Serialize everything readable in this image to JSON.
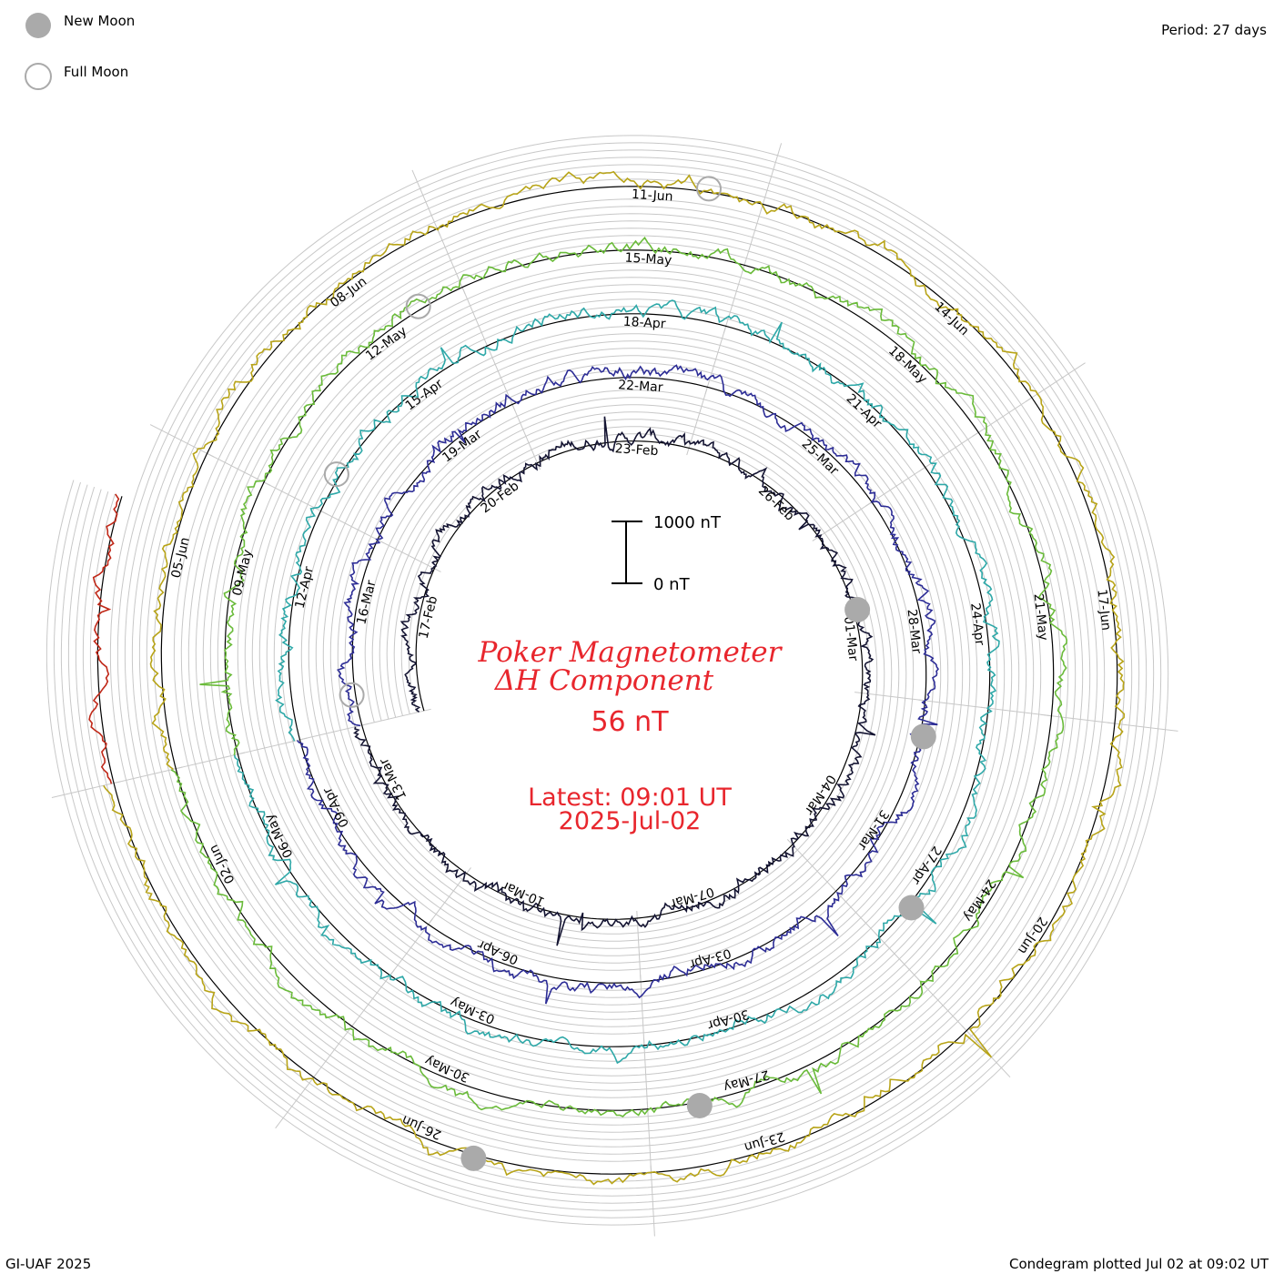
{
  "legend": {
    "new_moon": "New Moon",
    "full_moon": "Full Moon"
  },
  "period": "Period: 27 days",
  "footer": {
    "left": "GI-UAF 2025",
    "right": "Condegram plotted Jul 02 at 09:02 UT"
  },
  "title": {
    "line1": "Poker Magnetometer",
    "line2": "ΔH Component",
    "value": "56 nT",
    "latest_line1": "Latest: 09:01 UT",
    "latest_line2": "2025-Jul-02"
  },
  "scale": {
    "top_label": "1000 nT",
    "bottom_label": "0 nT"
  },
  "colors": {
    "title": "#e8262d",
    "moon_new": "#aaaaaa",
    "grid": "#c8c8c8"
  },
  "chart_data": {
    "type": "line",
    "subtype": "condegram-spiral",
    "period_days": 27,
    "start_date": "2025-02-15",
    "end_date": "2025-07-02",
    "cycles": [
      {
        "start": "2025-02-15",
        "color": "#141432",
        "labels": [
          "17-Feb",
          "20-Feb",
          "23-Feb",
          "26-Feb",
          "01-Mar",
          "04-Mar",
          "07-Mar",
          "10-Mar",
          "13-Mar"
        ]
      },
      {
        "start": "2025-03-14",
        "color": "#2d2d96",
        "labels": [
          "16-Mar",
          "19-Mar",
          "22-Mar",
          "25-Mar",
          "28-Mar",
          "31-Mar",
          "03-Apr",
          "06-Apr",
          "09-Apr"
        ]
      },
      {
        "start": "2025-04-10",
        "color": "#2ea8a8",
        "labels": [
          "12-Apr",
          "15-Apr",
          "18-Apr",
          "21-Apr",
          "24-Apr",
          "27-Apr",
          "30-Apr",
          "03-May",
          "06-May"
        ]
      },
      {
        "start": "2025-05-07",
        "color": "#6abb3a",
        "labels": [
          "09-May",
          "12-May",
          "15-May",
          "18-May",
          "21-May",
          "24-May",
          "27-May",
          "30-May",
          "02-Jun"
        ]
      },
      {
        "start": "2025-06-03",
        "color": "#b8a418",
        "labels": [
          "05-Jun",
          "08-Jun",
          "11-Jun",
          "14-Jun",
          "17-Jun",
          "20-Jun",
          "23-Jun",
          "26-Jun"
        ]
      },
      {
        "start": "2025-06-30",
        "color": "#c02818",
        "labels": []
      }
    ],
    "moons": [
      {
        "type": "new",
        "date": "2025-02-28"
      },
      {
        "type": "full",
        "date": "2025-03-14"
      },
      {
        "type": "new",
        "date": "2025-03-29"
      },
      {
        "type": "full",
        "date": "2025-04-13"
      },
      {
        "type": "new",
        "date": "2025-04-27"
      },
      {
        "type": "full",
        "date": "2025-05-12"
      },
      {
        "type": "new",
        "date": "2025-05-27"
      },
      {
        "type": "full",
        "date": "2025-06-11"
      },
      {
        "type": "new",
        "date": "2025-06-25"
      }
    ],
    "latest_value_nT": 56,
    "scale_bar_nT": [
      0,
      1000
    ]
  }
}
